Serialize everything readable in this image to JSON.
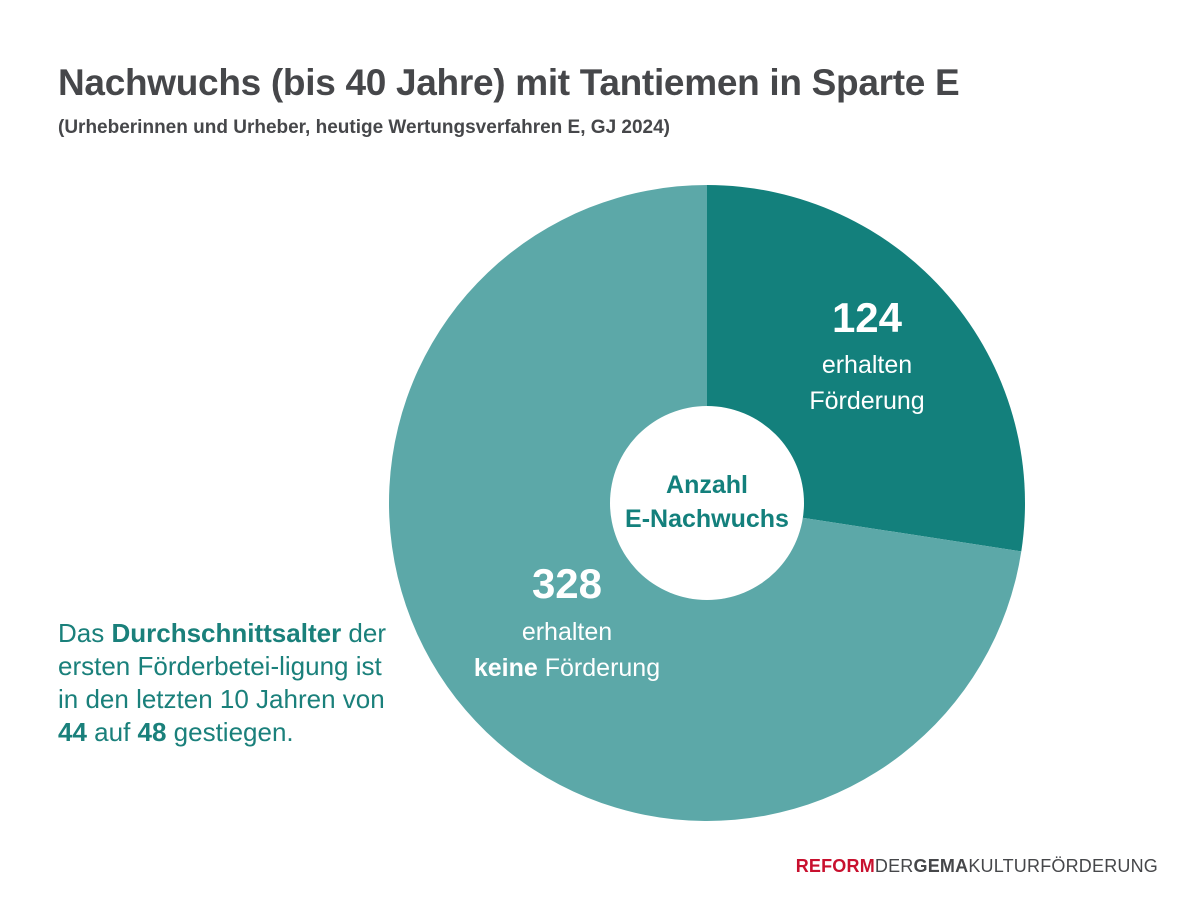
{
  "title": "Nachwuchs (bis 40 Jahre) mit Tantiemen in Sparte E",
  "subtitle": "(Urheberinnen und Urheber, heutige Wertungsverfahren E, GJ 2024)",
  "note": {
    "p1": "Das ",
    "bold1": "Durchschnittsalter",
    "p2": " der ersten Förderbetei-ligung ist in den letzten 10 Jahren von ",
    "bold2": "44",
    "p3": " auf ",
    "bold3": "48",
    "p4": " gestiegen."
  },
  "brand": {
    "part1": "REFORM",
    "part2": "DER",
    "part3": "GEMA",
    "part4": "KULTURFÖRDERUNG"
  },
  "chart_data": {
    "type": "pie",
    "variant": "donut",
    "center_label": [
      "Anzahl",
      "E-Nachwuchs"
    ],
    "slices": [
      {
        "name": "erhalten Förderung",
        "value": 124,
        "value_label": "124",
        "label_lines": [
          [
            "erhalten"
          ],
          [
            "Förderung"
          ]
        ],
        "color": "#13807c"
      },
      {
        "name": "erhalten keine Förderung",
        "value": 328,
        "value_label": "328",
        "label_lines": [
          [
            "erhalten"
          ],
          [
            "keine",
            " Förderung"
          ]
        ],
        "color": "#5ca8a8"
      }
    ],
    "colors": {
      "center_text": "#13807c",
      "label_text": "#ffffff"
    }
  }
}
